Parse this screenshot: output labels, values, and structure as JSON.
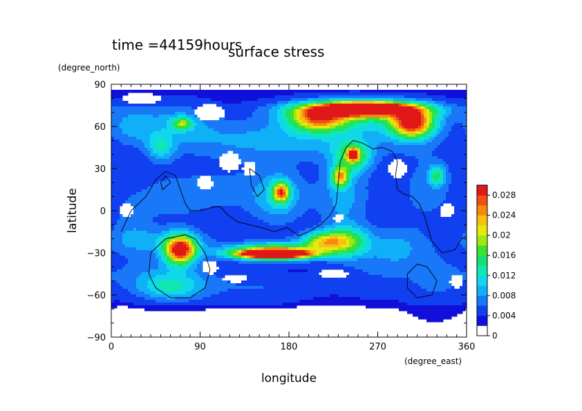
{
  "chart_data": {
    "type": "heatmap",
    "time_label": "time =44159hours",
    "title": "surface stress",
    "xlabel": "longitude",
    "ylabel": "latitude",
    "x_unit": "(degree_east)",
    "y_unit": "(degree_north)",
    "xlim": [
      0,
      360
    ],
    "ylim": [
      -90,
      90
    ],
    "x_ticks": [
      "0",
      "90",
      "180",
      "270",
      "360"
    ],
    "y_ticks": [
      "90",
      "60",
      "30",
      "0",
      "−30",
      "−60",
      "−90"
    ],
    "x_tick_values": [
      0,
      90,
      180,
      270,
      360
    ],
    "y_tick_values": [
      90,
      60,
      30,
      0,
      -30,
      -60,
      -90
    ],
    "colorbar": {
      "min": 0,
      "max": 0.03,
      "labels": [
        "0.028",
        "0.024",
        "0.02",
        "0.016",
        "0.012",
        "0.008",
        "0.004",
        "0"
      ],
      "label_values": [
        0.028,
        0.024,
        0.02,
        0.016,
        0.012,
        0.008,
        0.004,
        0
      ],
      "colors": [
        "#ffffff",
        "#1010d8",
        "#1040f0",
        "#1878f8",
        "#10b0f8",
        "#10d8e8",
        "#10e8b0",
        "#18e070",
        "#40e030",
        "#a0e810",
        "#e8e810",
        "#f8c010",
        "#f88810",
        "#f05010",
        "#e01818"
      ]
    },
    "blobs": [
      {
        "x": 180,
        "y": 50,
        "w": 190,
        "h": 20,
        "v": 0.006
      },
      {
        "x": 250,
        "y": 68,
        "w": 110,
        "h": 16,
        "v": 0.008
      },
      {
        "x": 255,
        "y": 72,
        "w": 90,
        "h": 8,
        "v": 0.022
      },
      {
        "x": 258,
        "y": 73,
        "w": 50,
        "h": 5,
        "v": 0.03
      },
      {
        "x": 305,
        "y": 62,
        "w": 30,
        "h": 14,
        "v": 0.026
      },
      {
        "x": 210,
        "y": 65,
        "w": 40,
        "h": 12,
        "v": 0.018
      },
      {
        "x": 65,
        "y": 64,
        "w": 60,
        "h": 20,
        "v": 0.005
      },
      {
        "x": 72,
        "y": 62,
        "w": 14,
        "h": 6,
        "v": 0.012
      },
      {
        "x": 20,
        "y": 60,
        "w": 30,
        "h": 18,
        "v": 0.004
      },
      {
        "x": 50,
        "y": 45,
        "w": 20,
        "h": 14,
        "v": 0.007
      },
      {
        "x": 60,
        "y": 10,
        "w": 60,
        "h": 28,
        "v": 0.004
      },
      {
        "x": 120,
        "y": 15,
        "w": 60,
        "h": 30,
        "v": 0.003
      },
      {
        "x": 170,
        "y": 10,
        "w": 40,
        "h": 30,
        "v": 0.007
      },
      {
        "x": 172,
        "y": 13,
        "w": 12,
        "h": 10,
        "v": 0.02
      },
      {
        "x": 245,
        "y": 38,
        "w": 25,
        "h": 15,
        "v": 0.012
      },
      {
        "x": 245,
        "y": 40,
        "w": 8,
        "h": 6,
        "v": 0.02
      },
      {
        "x": 232,
        "y": 24,
        "w": 12,
        "h": 10,
        "v": 0.018
      },
      {
        "x": 235,
        "y": 10,
        "w": 40,
        "h": 40,
        "v": 0.006
      },
      {
        "x": 320,
        "y": 15,
        "w": 50,
        "h": 40,
        "v": 0.004
      },
      {
        "x": 330,
        "y": 25,
        "w": 12,
        "h": 10,
        "v": 0.01
      },
      {
        "x": 50,
        "y": -22,
        "w": 80,
        "h": 14,
        "v": 0.005
      },
      {
        "x": 70,
        "y": -28,
        "w": 22,
        "h": 14,
        "v": 0.028
      },
      {
        "x": 165,
        "y": -28,
        "w": 75,
        "h": 10,
        "v": 0.006
      },
      {
        "x": 165,
        "y": -30,
        "w": 60,
        "h": 7,
        "v": 0.022
      },
      {
        "x": 165,
        "y": -31,
        "w": 45,
        "h": 3.5,
        "v": 0.03
      },
      {
        "x": 215,
        "y": -22,
        "w": 30,
        "h": 10,
        "v": 0.016
      },
      {
        "x": 240,
        "y": -22,
        "w": 30,
        "h": 14,
        "v": 0.012
      },
      {
        "x": 50,
        "y": -45,
        "w": 80,
        "h": 18,
        "v": 0.004
      },
      {
        "x": 60,
        "y": -55,
        "w": 50,
        "h": 14,
        "v": 0.008
      },
      {
        "x": 270,
        "y": -40,
        "w": 70,
        "h": 30,
        "v": 0.003
      },
      {
        "x": 290,
        "y": -25,
        "w": 40,
        "h": 20,
        "v": 0.004
      },
      {
        "x": 330,
        "y": -50,
        "w": 40,
        "h": 30,
        "v": 0.003
      },
      {
        "x": 150,
        "y": -55,
        "w": 80,
        "h": 16,
        "v": 0.003
      },
      {
        "x": 20,
        "y": -10,
        "w": 30,
        "h": 30,
        "v": 0.003
      }
    ],
    "holes": [
      {
        "x": 100,
        "y": 70,
        "w": 30,
        "h": 12
      },
      {
        "x": 30,
        "y": 80,
        "w": 40,
        "h": 8
      },
      {
        "x": 120,
        "y": 35,
        "w": 22,
        "h": 14
      },
      {
        "x": 140,
        "y": 30,
        "w": 14,
        "h": 10
      },
      {
        "x": 95,
        "y": 20,
        "w": 16,
        "h": 10
      },
      {
        "x": 15,
        "y": 0,
        "w": 14,
        "h": 10
      },
      {
        "x": 290,
        "y": 30,
        "w": 20,
        "h": 14
      },
      {
        "x": 340,
        "y": 0,
        "w": 16,
        "h": 10
      },
      {
        "x": 100,
        "y": -40,
        "w": 16,
        "h": 10
      },
      {
        "x": 125,
        "y": -48,
        "w": 25,
        "h": 6
      },
      {
        "x": 225,
        "y": -45,
        "w": 30,
        "h": 7
      },
      {
        "x": 350,
        "y": -50,
        "w": 14,
        "h": 10
      },
      {
        "x": 230,
        "y": -5,
        "w": 10,
        "h": 6
      }
    ],
    "coastlines": [
      [
        [
          10,
          -15
        ],
        [
          20,
          0
        ],
        [
          35,
          10
        ],
        [
          45,
          22
        ],
        [
          55,
          28
        ],
        [
          65,
          25
        ],
        [
          70,
          15
        ],
        [
          75,
          5
        ],
        [
          80,
          0
        ],
        [
          90,
          0
        ],
        [
          100,
          2
        ],
        [
          110,
          3
        ],
        [
          118,
          -3
        ],
        [
          128,
          -8
        ],
        [
          140,
          -10
        ],
        [
          152,
          -12
        ],
        [
          165,
          -15
        ],
        [
          178,
          -12
        ],
        [
          190,
          -18
        ],
        [
          200,
          -15
        ],
        [
          212,
          -10
        ],
        [
          222,
          -3
        ],
        [
          228,
          5
        ],
        [
          230,
          20
        ],
        [
          232,
          35
        ],
        [
          238,
          45
        ],
        [
          245,
          50
        ],
        [
          255,
          48
        ],
        [
          265,
          44
        ],
        [
          275,
          45
        ],
        [
          285,
          42
        ],
        [
          290,
          35
        ],
        [
          288,
          25
        ],
        [
          290,
          15
        ],
        [
          296,
          12
        ],
        [
          305,
          10
        ],
        [
          312,
          5
        ],
        [
          318,
          -5
        ],
        [
          325,
          -22
        ],
        [
          335,
          -30
        ],
        [
          348,
          -28
        ],
        [
          355,
          -20
        ],
        [
          360,
          -18
        ]
      ],
      [
        [
          70,
          -18
        ],
        [
          55,
          -20
        ],
        [
          40,
          -30
        ],
        [
          38,
          -45
        ],
        [
          45,
          -55
        ],
        [
          60,
          -62
        ],
        [
          80,
          -62
        ],
        [
          95,
          -55
        ],
        [
          100,
          -42
        ],
        [
          95,
          -30
        ],
        [
          85,
          -20
        ],
        [
          75,
          -17
        ],
        [
          70,
          -18
        ]
      ],
      [
        [
          300,
          -45
        ],
        [
          310,
          -38
        ],
        [
          320,
          -40
        ],
        [
          330,
          -50
        ],
        [
          325,
          -60
        ],
        [
          310,
          -62
        ],
        [
          300,
          -55
        ],
        [
          300,
          -45
        ]
      ],
      [
        [
          140,
          30
        ],
        [
          150,
          25
        ],
        [
          155,
          15
        ],
        [
          148,
          10
        ],
        [
          142,
          18
        ],
        [
          140,
          30
        ]
      ],
      [
        [
          50,
          20
        ],
        [
          55,
          25
        ],
        [
          60,
          20
        ],
        [
          52,
          15
        ],
        [
          50,
          20
        ]
      ]
    ]
  }
}
